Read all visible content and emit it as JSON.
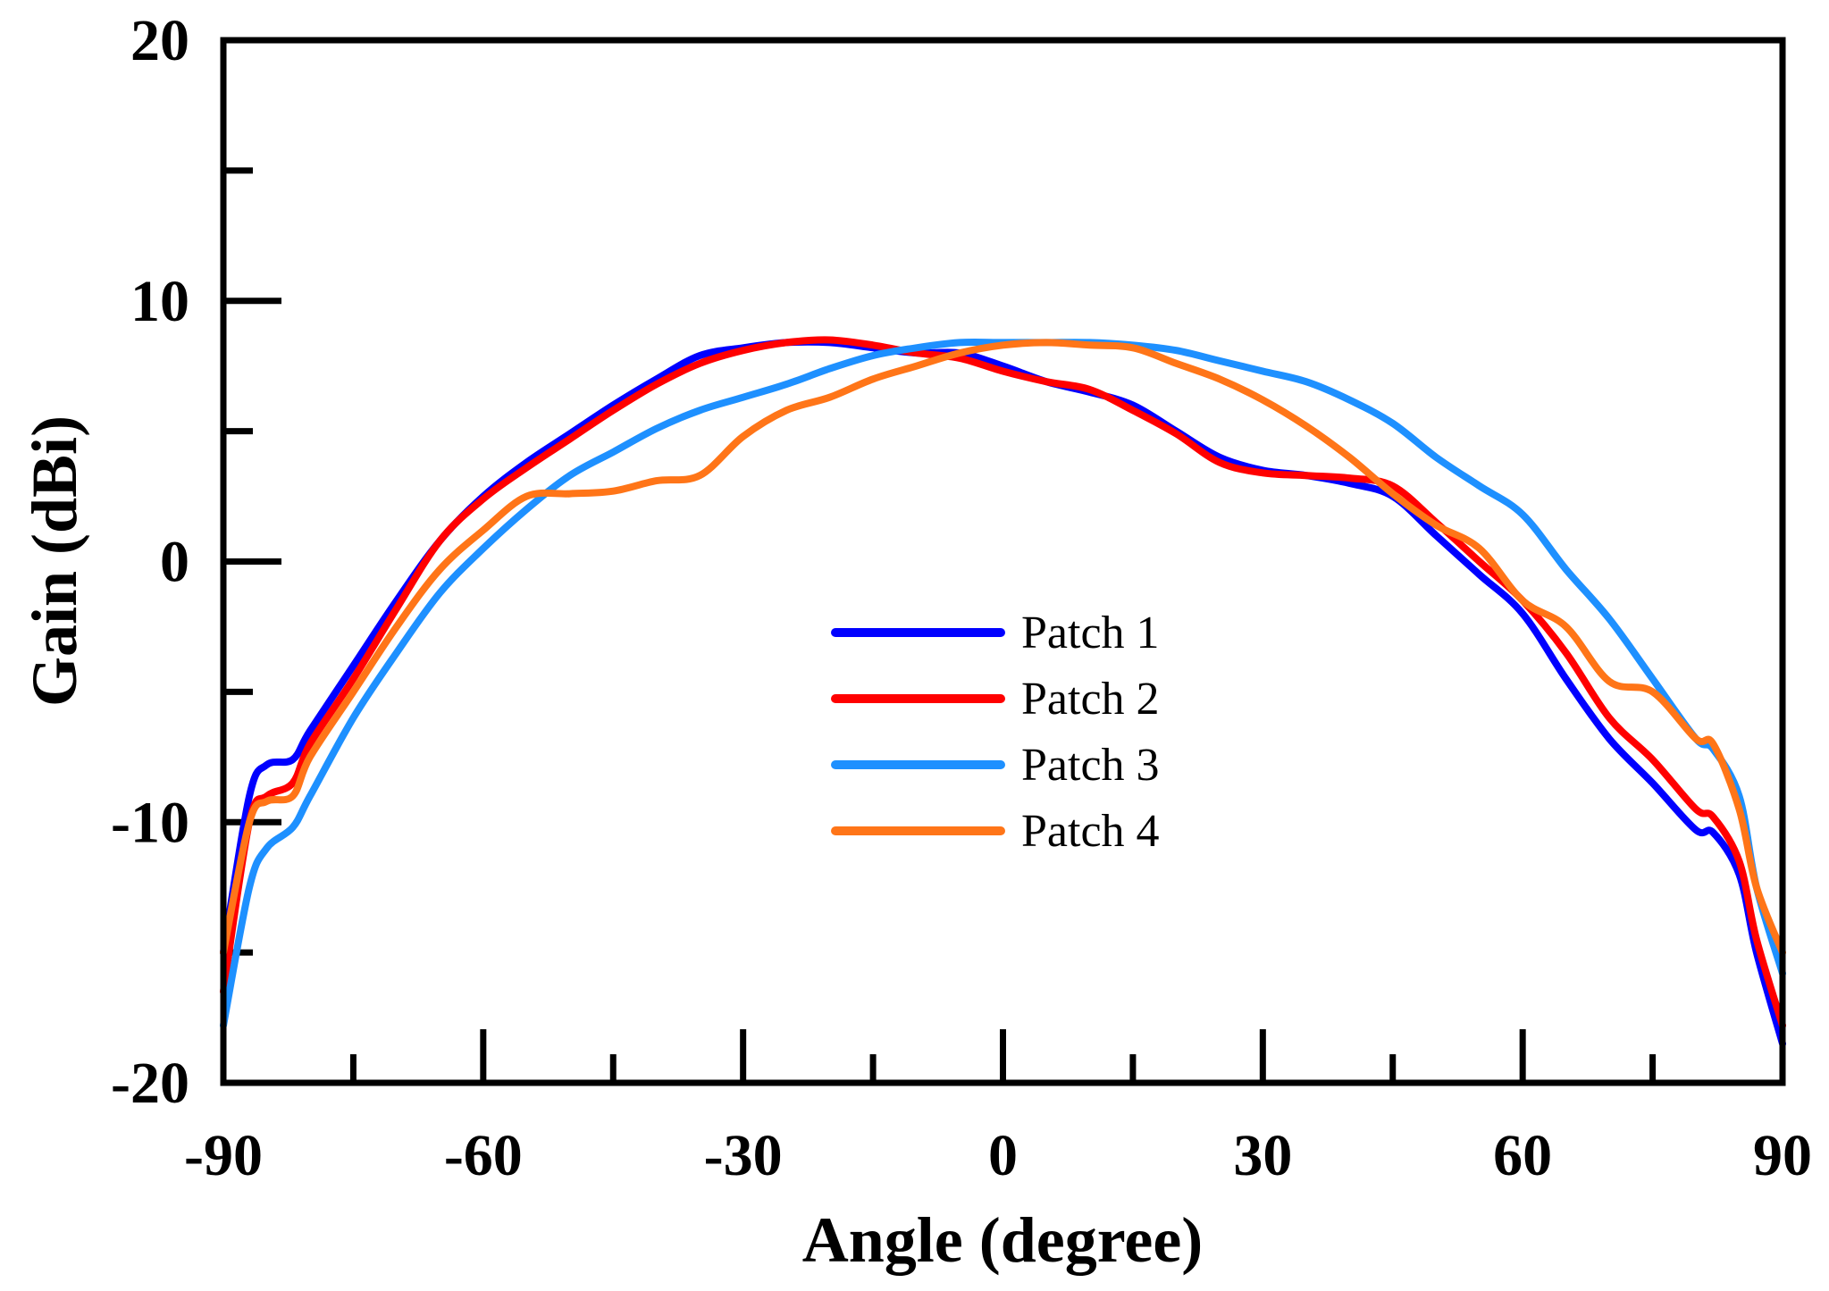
{
  "chart_data": {
    "type": "line",
    "title": "",
    "xlabel": "Angle (degree)",
    "ylabel": "Gain (dBi)",
    "xlim": [
      -90,
      90
    ],
    "ylim": [
      -20,
      20
    ],
    "x_ticks": [
      -90,
      -60,
      -30,
      0,
      30,
      60,
      90
    ],
    "x_tick_labels": [
      "-90",
      "-60",
      "-30",
      "0",
      "30",
      "60",
      "90"
    ],
    "y_ticks": [
      -20,
      -10,
      0,
      10,
      20
    ],
    "y_tick_labels": [
      "-20",
      "-10",
      "0",
      "10",
      "20"
    ],
    "legend_position": "center",
    "grid": false,
    "x": [
      -90,
      -87,
      -85,
      -82,
      -80,
      -75,
      -70,
      -65,
      -60,
      -55,
      -50,
      -45,
      -40,
      -35,
      -30,
      -25,
      -20,
      -15,
      -10,
      -5,
      0,
      5,
      10,
      15,
      20,
      25,
      30,
      35,
      40,
      45,
      50,
      55,
      60,
      65,
      70,
      75,
      80,
      82,
      85,
      87,
      90
    ],
    "series": [
      {
        "name": "Patch 1",
        "color": "#0000ff",
        "values": [
          -15.0,
          -9.0,
          -7.8,
          -7.6,
          -6.5,
          -4.0,
          -1.5,
          0.8,
          2.5,
          3.8,
          4.9,
          6.0,
          7.0,
          7.9,
          8.2,
          8.4,
          8.4,
          8.2,
          8.0,
          8.0,
          7.5,
          6.9,
          6.5,
          6.0,
          5.0,
          4.0,
          3.5,
          3.3,
          3.0,
          2.5,
          1.0,
          -0.5,
          -2.0,
          -4.5,
          -6.8,
          -8.5,
          -10.3,
          -10.4,
          -12.0,
          -15.0,
          -18.5
        ]
      },
      {
        "name": "Patch 2",
        "color": "#ff0000",
        "values": [
          -16.5,
          -10.0,
          -9.0,
          -8.5,
          -7.0,
          -4.5,
          -1.8,
          0.8,
          2.4,
          3.6,
          4.7,
          5.8,
          6.8,
          7.6,
          8.1,
          8.4,
          8.5,
          8.3,
          8.0,
          7.8,
          7.3,
          6.9,
          6.6,
          5.8,
          4.9,
          3.8,
          3.4,
          3.3,
          3.2,
          2.9,
          1.5,
          0.0,
          -1.5,
          -3.5,
          -6.0,
          -7.6,
          -9.5,
          -9.8,
          -11.5,
          -14.5,
          -17.8
        ]
      },
      {
        "name": "Patch 3",
        "color": "#1e90ff",
        "values": [
          -17.8,
          -12.5,
          -11.0,
          -10.2,
          -9.0,
          -6.0,
          -3.5,
          -1.2,
          0.5,
          2.0,
          3.3,
          4.2,
          5.1,
          5.8,
          6.3,
          6.8,
          7.4,
          7.9,
          8.2,
          8.4,
          8.4,
          8.4,
          8.4,
          8.3,
          8.1,
          7.7,
          7.3,
          6.9,
          6.2,
          5.3,
          4.0,
          2.9,
          1.8,
          -0.3,
          -2.2,
          -4.5,
          -6.8,
          -7.2,
          -9.0,
          -12.5,
          -15.8
        ]
      },
      {
        "name": "Patch 4",
        "color": "#ff7518",
        "values": [
          -15.0,
          -10.0,
          -9.2,
          -9.0,
          -7.5,
          -5.0,
          -2.5,
          -0.3,
          1.2,
          2.5,
          2.6,
          2.7,
          3.1,
          3.3,
          4.8,
          5.8,
          6.3,
          7.0,
          7.5,
          8.0,
          8.3,
          8.4,
          8.3,
          8.2,
          7.6,
          7.0,
          6.2,
          5.2,
          4.0,
          2.6,
          1.4,
          0.5,
          -1.5,
          -2.5,
          -4.6,
          -5.0,
          -6.8,
          -7.0,
          -9.5,
          -12.5,
          -15.0
        ]
      }
    ]
  }
}
